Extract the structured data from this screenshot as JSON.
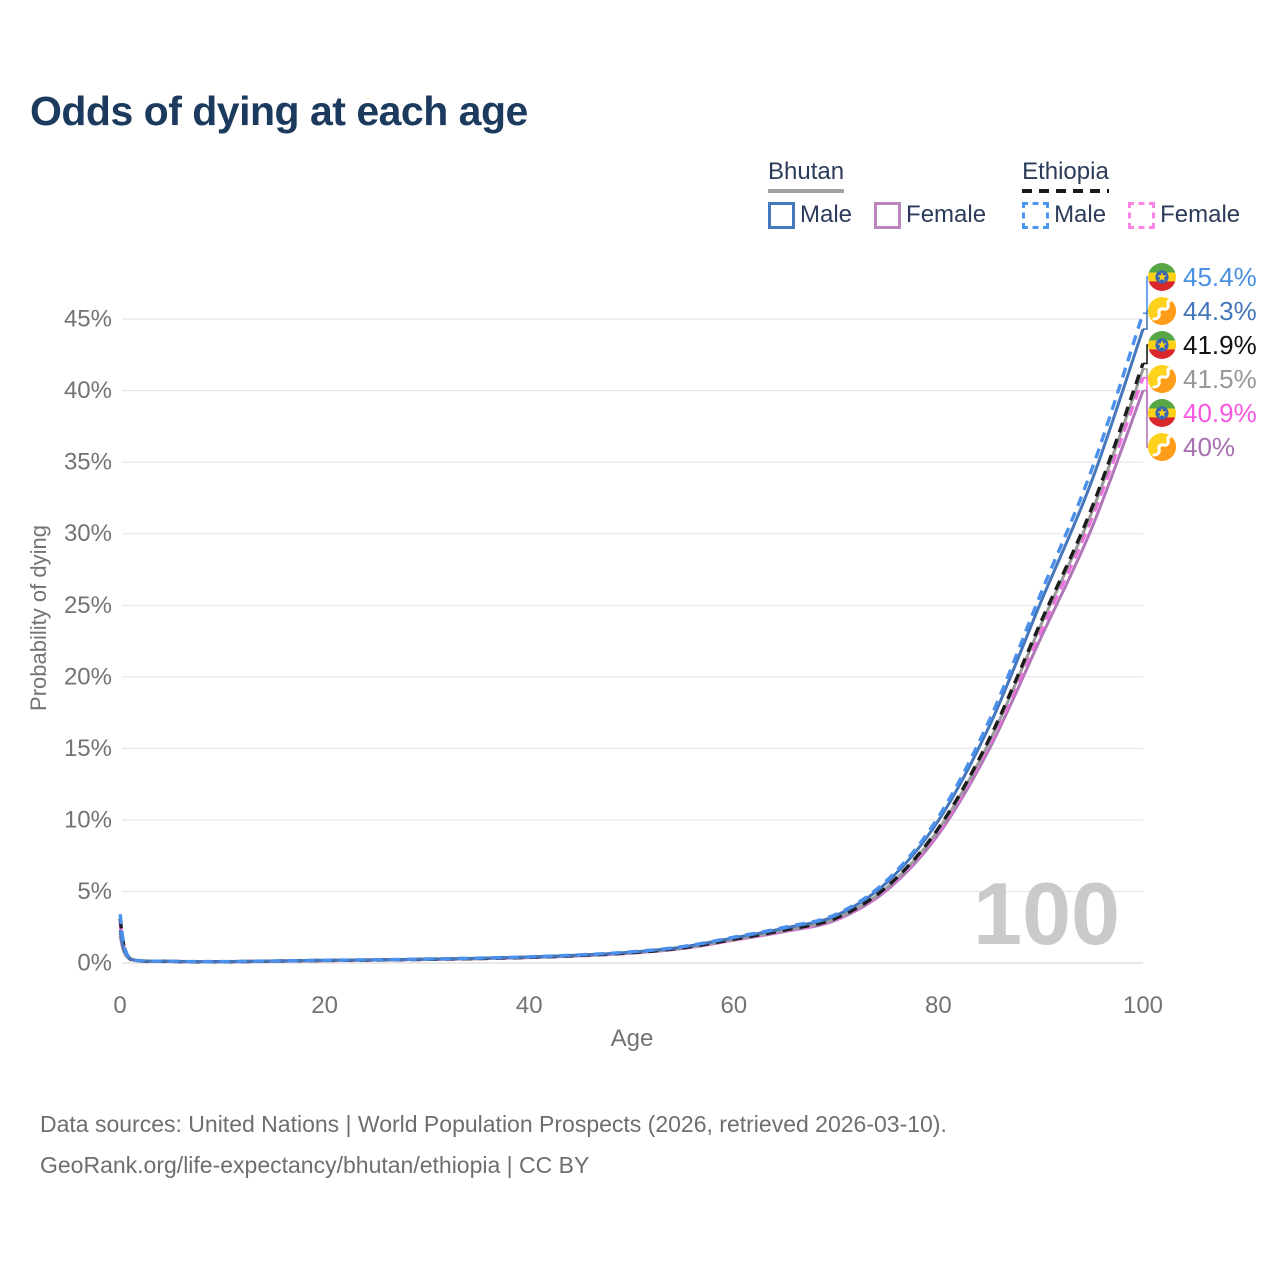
{
  "title": "Odds of dying at each age",
  "watermark_age": "100",
  "legend": {
    "groups": [
      {
        "name": "Bhutan",
        "line_style": "solid",
        "line_color": "#a3a3a3",
        "items": [
          {
            "label": "Male",
            "style": "solid",
            "color": "#4577bb"
          },
          {
            "label": "Female",
            "style": "solid",
            "color": "#bb86bd"
          }
        ]
      },
      {
        "name": "Ethiopia",
        "line_style": "dashed",
        "line_color": "#1a1a1a",
        "items": [
          {
            "label": "Male",
            "style": "dashed",
            "color": "#4a97f2"
          },
          {
            "label": "Female",
            "style": "dashed",
            "color": "#fb85e4"
          }
        ]
      }
    ]
  },
  "footer": {
    "line1": "Data sources: United Nations | World Population Prospects (2026, retrieved 2026-03-10).",
    "line2": "GeoRank.org/life-expectancy/bhutan/ethiopia | CC BY"
  },
  "colors": {
    "title": "#1b3a5e",
    "axis_text": "#737373",
    "grid": "#e7e7e7",
    "grid_zero": "#dadada",
    "watermark": "#cacaca",
    "footer_text": "#6e6e6e",
    "legend_text": "#2b3b59",
    "background": "#ffffff"
  },
  "flags": {
    "ethiopia": {
      "green": "#57a544",
      "yellow": "#fcd116",
      "red": "#d9252c",
      "emblem_blue": "#3767b4",
      "emblem_star": "#fcd116"
    },
    "bhutan": {
      "yellow": "#ffd21d",
      "orange": "#ff9c1a",
      "dragon": "#ffffff"
    }
  },
  "chart_data": {
    "type": "line",
    "title": "Odds of dying at each age",
    "xlabel": "Age",
    "ylabel": "Probability of dying",
    "xlim": [
      0,
      100
    ],
    "ylim": [
      0,
      47.5
    ],
    "xticks": [
      0,
      20,
      40,
      60,
      80,
      100
    ],
    "yticks": [
      0,
      5,
      10,
      15,
      20,
      25,
      30,
      35,
      40,
      45
    ],
    "ytick_suffix": "%",
    "grid": "horizontal",
    "legend_position": "top-right",
    "ages": [
      0,
      1,
      5,
      10,
      15,
      20,
      25,
      30,
      35,
      40,
      45,
      50,
      55,
      60,
      65,
      70,
      75,
      80,
      85,
      90,
      95,
      100
    ],
    "series": [
      {
        "id": "ethiopia_male",
        "country": "Ethiopia",
        "sex": "Male",
        "style": "dashed",
        "color": "#4a90ec",
        "label_color": "#4a90e2",
        "flag": "ethiopia",
        "end_value": 45.4,
        "end_label": "45.4%",
        "values": [
          3.4,
          0.3,
          0.12,
          0.1,
          0.14,
          0.19,
          0.23,
          0.28,
          0.34,
          0.43,
          0.57,
          0.78,
          1.15,
          1.8,
          2.5,
          3.4,
          5.8,
          10.2,
          17.0,
          25.8,
          34.5,
          45.4
        ]
      },
      {
        "id": "bhutan_male",
        "country": "Bhutan",
        "sex": "Male",
        "style": "solid",
        "color": "#4577bb",
        "label_color": "#4577bb",
        "flag": "bhutan",
        "end_value": 44.3,
        "end_label": "44.3%",
        "values": [
          2.3,
          0.29,
          0.12,
          0.1,
          0.14,
          0.19,
          0.22,
          0.27,
          0.33,
          0.42,
          0.56,
          0.76,
          1.12,
          1.76,
          2.44,
          3.32,
          5.66,
          9.95,
          16.6,
          25.2,
          33.7,
          44.3
        ]
      },
      {
        "id": "ethiopia_both",
        "country": "Ethiopia",
        "sex": "Both sexes",
        "style": "dashed",
        "color": "#1c1c1c",
        "label_color": "#111111",
        "flag": "ethiopia",
        "end_value": 41.9,
        "end_label": "41.9%",
        "values": [
          3.1,
          0.28,
          0.11,
          0.09,
          0.13,
          0.18,
          0.21,
          0.26,
          0.31,
          0.4,
          0.53,
          0.72,
          1.06,
          1.66,
          2.31,
          3.14,
          5.35,
          9.41,
          15.7,
          23.8,
          31.8,
          41.9
        ]
      },
      {
        "id": "bhutan_both",
        "country": "Bhutan",
        "sex": "Both sexes",
        "style": "solid",
        "color": "#9b9b9b",
        "label_color": "#979797",
        "flag": "bhutan",
        "end_value": 41.5,
        "end_label": "41.5%",
        "values": [
          2.1,
          0.27,
          0.11,
          0.09,
          0.13,
          0.17,
          0.21,
          0.26,
          0.31,
          0.39,
          0.52,
          0.71,
          1.05,
          1.65,
          2.29,
          3.11,
          5.3,
          9.32,
          15.5,
          23.6,
          31.5,
          41.5
        ]
      },
      {
        "id": "ethiopia_female",
        "country": "Ethiopia",
        "sex": "Female",
        "style": "dashed",
        "color": "#f46de4",
        "label_color": "#f857e0",
        "flag": "ethiopia",
        "end_value": 40.9,
        "end_label": "40.9%",
        "values": [
          2.8,
          0.27,
          0.11,
          0.09,
          0.13,
          0.17,
          0.21,
          0.25,
          0.31,
          0.39,
          0.51,
          0.7,
          1.04,
          1.62,
          2.25,
          3.06,
          5.23,
          9.19,
          15.3,
          23.2,
          31.1,
          40.9
        ]
      },
      {
        "id": "bhutan_female",
        "country": "Bhutan",
        "sex": "Female",
        "style": "solid",
        "color": "#b077b8",
        "label_color": "#a76fb0",
        "flag": "bhutan",
        "end_value": 40.0,
        "end_label": "40%",
        "values": [
          1.9,
          0.26,
          0.11,
          0.09,
          0.12,
          0.17,
          0.2,
          0.25,
          0.3,
          0.38,
          0.5,
          0.69,
          1.01,
          1.59,
          2.2,
          3.0,
          5.11,
          8.99,
          15.0,
          22.7,
          30.4,
          40.0
        ]
      }
    ]
  }
}
